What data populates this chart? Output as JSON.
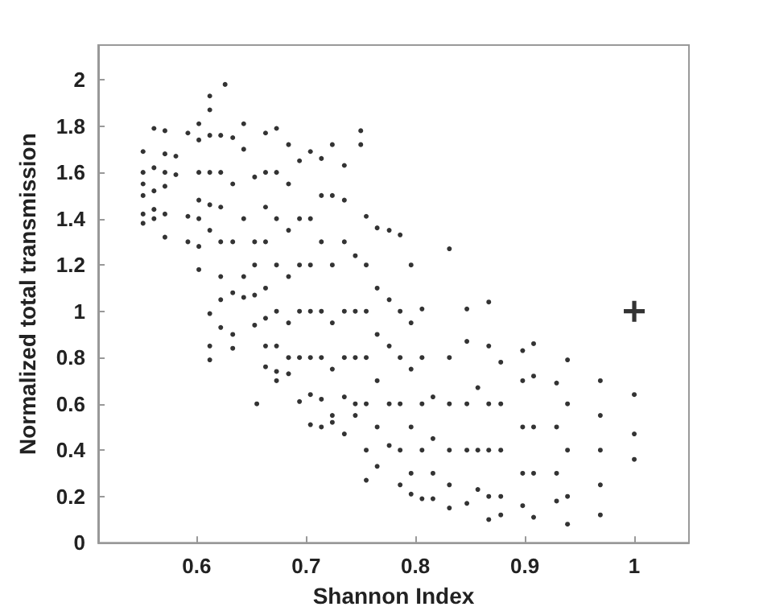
{
  "chart_data": {
    "type": "scatter",
    "xlabel": "Shannon Index",
    "ylabel": "Normalized total transmission",
    "xlim": [
      0.51,
      1.05
    ],
    "ylim": [
      0,
      2.15
    ],
    "xticks": [
      0.6,
      0.7,
      0.8,
      0.9,
      1
    ],
    "yticks": [
      0,
      0.2,
      0.4,
      0.6,
      0.8,
      1,
      1.2,
      1.4,
      1.6,
      1.8,
      2
    ],
    "grid": false,
    "series": [
      {
        "color": "#000000",
        "marker": "circle",
        "x": [
          0.551,
          0.551,
          0.551,
          0.551,
          0.551,
          0.551,
          0.561,
          0.561,
          0.561,
          0.561,
          0.561,
          0.571,
          0.571,
          0.571,
          0.571,
          0.571,
          0.571,
          0.581,
          0.581,
          0.592,
          0.592,
          0.592,
          0.602,
          0.602,
          0.602,
          0.602,
          0.602,
          0.602,
          0.602,
          0.612,
          0.612,
          0.612,
          0.612,
          0.612,
          0.612,
          0.612,
          0.612,
          0.612,
          0.622,
          0.622,
          0.622,
          0.622,
          0.622,
          0.622,
          0.622,
          0.626,
          0.633,
          0.633,
          0.633,
          0.633,
          0.633,
          0.633,
          0.643,
          0.643,
          0.643,
          0.643,
          0.643,
          0.653,
          0.653,
          0.653,
          0.653,
          0.653,
          0.655,
          0.663,
          0.663,
          0.663,
          0.663,
          0.663,
          0.663,
          0.663,
          0.663,
          0.673,
          0.673,
          0.673,
          0.673,
          0.673,
          0.673,
          0.673,
          0.673,
          0.684,
          0.684,
          0.684,
          0.684,
          0.684,
          0.684,
          0.684,
          0.694,
          0.694,
          0.694,
          0.694,
          0.694,
          0.694,
          0.704,
          0.704,
          0.704,
          0.704,
          0.704,
          0.704,
          0.704,
          0.714,
          0.714,
          0.714,
          0.714,
          0.714,
          0.714,
          0.714,
          0.724,
          0.724,
          0.724,
          0.724,
          0.724,
          0.724,
          0.724,
          0.735,
          0.735,
          0.735,
          0.735,
          0.735,
          0.735,
          0.735,
          0.745,
          0.745,
          0.745,
          0.745,
          0.745,
          0.75,
          0.75,
          0.755,
          0.755,
          0.755,
          0.755,
          0.755,
          0.755,
          0.755,
          0.765,
          0.765,
          0.765,
          0.765,
          0.765,
          0.765,
          0.776,
          0.776,
          0.776,
          0.776,
          0.776,
          0.786,
          0.786,
          0.786,
          0.786,
          0.786,
          0.786,
          0.796,
          0.796,
          0.796,
          0.796,
          0.796,
          0.796,
          0.806,
          0.806,
          0.806,
          0.806,
          0.806,
          0.816,
          0.816,
          0.816,
          0.816,
          0.831,
          0.831,
          0.831,
          0.831,
          0.831,
          0.831,
          0.847,
          0.847,
          0.847,
          0.847,
          0.847,
          0.857,
          0.857,
          0.857,
          0.867,
          0.867,
          0.867,
          0.867,
          0.867,
          0.867,
          0.878,
          0.878,
          0.878,
          0.878,
          0.878,
          0.898,
          0.898,
          0.898,
          0.898,
          0.898,
          0.908,
          0.908,
          0.908,
          0.908,
          0.908,
          0.929,
          0.929,
          0.929,
          0.929,
          0.939,
          0.939,
          0.939,
          0.939,
          0.939,
          0.969,
          0.969,
          0.969,
          0.969,
          0.969,
          1,
          1,
          1
        ],
        "values": [
          1.38,
          1.42,
          1.5,
          1.55,
          1.6,
          1.69,
          1.4,
          1.44,
          1.52,
          1.62,
          1.79,
          1.32,
          1.42,
          1.54,
          1.6,
          1.68,
          1.78,
          1.59,
          1.67,
          1.3,
          1.41,
          1.77,
          1.18,
          1.28,
          1.4,
          1.48,
          1.6,
          1.74,
          1.81,
          0.79,
          0.85,
          0.99,
          1.35,
          1.46,
          1.6,
          1.76,
          1.87,
          1.93,
          0.93,
          1.05,
          1.15,
          1.3,
          1.45,
          1.6,
          1.76,
          1.98,
          0.84,
          0.9,
          1.08,
          1.3,
          1.55,
          1.75,
          1.06,
          1.15,
          1.4,
          1.7,
          1.81,
          0.94,
          1.07,
          1.2,
          1.3,
          1.58,
          0.6,
          0.76,
          0.85,
          0.97,
          1.1,
          1.3,
          1.45,
          1.6,
          1.77,
          0.7,
          0.74,
          0.85,
          1.0,
          1.2,
          1.4,
          1.6,
          1.79,
          0.73,
          0.8,
          0.95,
          1.15,
          1.35,
          1.55,
          1.72,
          0.61,
          0.8,
          1.0,
          1.2,
          1.4,
          1.65,
          0.51,
          0.64,
          0.8,
          1.0,
          1.2,
          1.4,
          1.69,
          0.5,
          0.62,
          0.8,
          1.0,
          1.3,
          1.5,
          1.66,
          0.52,
          0.55,
          0.75,
          0.95,
          1.2,
          1.5,
          1.72,
          0.47,
          0.63,
          0.8,
          1.0,
          1.3,
          1.48,
          1.63,
          0.55,
          0.6,
          0.8,
          1.0,
          1.24,
          1.72,
          1.78,
          0.27,
          0.4,
          0.6,
          0.8,
          1.0,
          1.2,
          1.41,
          0.33,
          0.5,
          0.7,
          0.9,
          1.1,
          1.36,
          0.42,
          0.6,
          0.85,
          1.05,
          1.35,
          0.25,
          0.4,
          0.6,
          0.8,
          1.0,
          1.33,
          0.21,
          0.3,
          0.5,
          0.75,
          0.95,
          1.2,
          0.19,
          0.4,
          0.6,
          0.8,
          1.01,
          0.19,
          0.3,
          0.45,
          0.63,
          0.15,
          0.25,
          0.4,
          0.6,
          0.8,
          1.27,
          0.17,
          0.4,
          0.6,
          0.87,
          1.01,
          0.23,
          0.4,
          0.67,
          0.1,
          0.2,
          0.4,
          0.6,
          0.85,
          1.04,
          0.12,
          0.2,
          0.4,
          0.6,
          0.78,
          0.16,
          0.3,
          0.5,
          0.7,
          0.83,
          0.11,
          0.3,
          0.5,
          0.72,
          0.86,
          0.18,
          0.3,
          0.5,
          0.69,
          0.08,
          0.2,
          0.4,
          0.6,
          0.79,
          0.12,
          0.25,
          0.4,
          0.55,
          0.7,
          0.36,
          0.47,
          0.64
        ]
      },
      {
        "color": "#000000",
        "marker": "cross",
        "x": [
          1
        ],
        "values": [
          1
        ]
      }
    ]
  }
}
